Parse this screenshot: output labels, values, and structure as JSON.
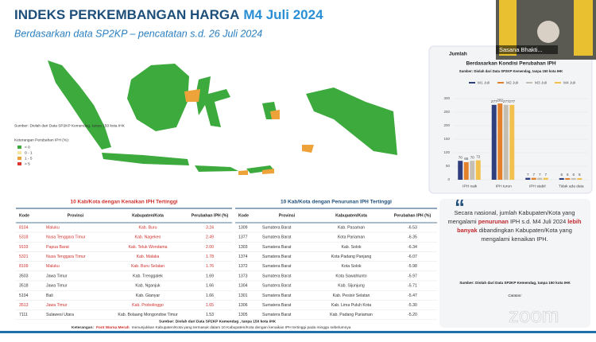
{
  "header": {
    "title": "INDEKS PERKEMBANGAN HARGA",
    "title_highlight": "M4 Juli 2024",
    "subtitle": "Berdasarkan data SP2KP – pencatatan s.d. 26 Juli 2024"
  },
  "map": {
    "source": "Sumber: Diolah dari Data SP2KP Kemendag, tanpa 150 kota IHK",
    "legend_title": "Keterangan Perubahan IPH (%):",
    "legend": [
      {
        "label": "< 0",
        "color": "#3caa3c"
      },
      {
        "label": "0 - 1",
        "color": "#f4e7a2"
      },
      {
        "label": "1 - 5",
        "color": "#eea33a"
      },
      {
        "label": "> 5",
        "color": "#d9362f"
      }
    ]
  },
  "chart_data": {
    "type": "bar",
    "title": "Jumlah",
    "subtitle": "Berdasarkan Kondisi Perubahan IPH",
    "source": "Sumber: Diolah dari Data SP2KP Kemendag, tanpa 150 kota IHK",
    "categories": [
      "IPH naik",
      "IPH turun",
      "IPH stabil",
      "Tidak ada data"
    ],
    "series": [
      {
        "name": "M1 Juli",
        "color": "#2f3f7e",
        "values": [
          70,
          277,
          7,
          6
        ]
      },
      {
        "name": "M2 Juli",
        "color": "#e2802c",
        "values": [
          65,
          282,
          7,
          6
        ]
      },
      {
        "name": "M3 Juli",
        "color": "#c4bfb2",
        "values": [
          70,
          277,
          7,
          6
        ]
      },
      {
        "name": "M4 Juli",
        "color": "#f2c04c",
        "values": [
          72,
          277,
          7,
          6
        ]
      }
    ],
    "ylim": [
      0,
      300
    ],
    "yticks": [
      0,
      50,
      100,
      150,
      200,
      250,
      300
    ]
  },
  "table_up": {
    "title": "10 Kab/Kota dengan Kenaikan IPH Tertinggi",
    "columns": [
      "Kode",
      "Provinsi",
      "Kabupaten/Kota",
      "Perubahan IPH (%)"
    ],
    "rows": [
      [
        "8104",
        "Maluku",
        "Kab. Buru",
        "3.24"
      ],
      [
        "5318",
        "Nusa Tenggara Timur",
        "Kab. Nagekeo",
        "2.49"
      ],
      [
        "9103",
        "Papua Barat",
        "Kab. Teluk Wondama",
        "2.00"
      ],
      [
        "5321",
        "Nusa Tenggara Timur",
        "Kab. Malaka",
        "1.78"
      ],
      [
        "8109",
        "Maluku",
        "Kab. Buru Selatan",
        "1.76"
      ],
      [
        "3503",
        "Jawa Timur",
        "Kab. Trenggalek",
        "1.69"
      ],
      [
        "3518",
        "Jawa Timur",
        "Kab. Nganjuk",
        "1.66"
      ],
      [
        "5104",
        "Bali",
        "Kab. Gianyar",
        "1.66"
      ],
      [
        "3513",
        "Jawa Timur",
        "Kab. Probolinggo",
        "1.65"
      ],
      [
        "7111",
        "Sulawesi Utara",
        "Kab. Bolaang Mongondow Timur",
        "1.53"
      ]
    ],
    "highlight": [
      true,
      true,
      true,
      true,
      true,
      false,
      false,
      false,
      true,
      false
    ]
  },
  "table_down": {
    "title": "10 Kab/Kota dengan Penurunan IPH Tertinggi",
    "columns": [
      "Kode",
      "Provinsi",
      "Kabupaten/Kota",
      "Perubahan IPH (%)"
    ],
    "rows": [
      [
        "1309",
        "Sumatera Barat",
        "Kab. Pasaman",
        "-6.53"
      ],
      [
        "1377",
        "Sumatera Barat",
        "Kota Pariaman",
        "-6.35"
      ],
      [
        "1303",
        "Sumatera Barat",
        "Kab. Solok",
        "-6.34"
      ],
      [
        "1374",
        "Sumatera Barat",
        "Kota Padang Panjang",
        "-6.07"
      ],
      [
        "1372",
        "Sumatera Barat",
        "Kota Solok",
        "-5.98"
      ],
      [
        "1373",
        "Sumatera Barat",
        "Kota Sawahlunto",
        "-5.97"
      ],
      [
        "1304",
        "Sumatera Barat",
        "Kab. Sijunjung",
        "-5.71"
      ],
      [
        "1301",
        "Sumatera Barat",
        "Kab. Pesisir Selatan",
        "-5.47"
      ],
      [
        "1306",
        "Sumatera Barat",
        "Kab. Lima Puluh Kota",
        "-5.30"
      ],
      [
        "1305",
        "Sumatera Barat",
        "Kab. Padang Pariaman",
        "-5.20"
      ]
    ]
  },
  "quote": {
    "segments": [
      {
        "text": "Secara nasional, jumlah Kabupaten/Kota yang mengalami ",
        "color": "#333333"
      },
      {
        "text": "penurunan",
        "color": "#c0282d"
      },
      {
        "text": " IPH s.d. M4 Juli 2024 ",
        "color": "#333333"
      },
      {
        "text": "lebih banyak",
        "color": "#c0282d"
      },
      {
        "text": " dibandingkan Kabupaten/Kota yang mengalami kenaikan IPH.",
        "color": "#333333"
      }
    ],
    "source": "Sumber: Diolah dari Data SP2KP Kemendag, tanpa 150 kota IHK",
    "note_title": "Catatan:"
  },
  "footer": {
    "source": "Sumber: Diolah dari Data SP2KP Kemendag , tanpa 150 kota IHK",
    "note_label": "Keterangan:",
    "note_highlight": "Font Warna Merah",
    "note_text": "menunjukkan Kabupaten/Kota yang termasuk dalam 10 Kabupaten/Kota dengan kenaikan IPH tertinggi pada minggu sebelumnya"
  },
  "video": {
    "name": "Sasana Bhakti..."
  },
  "watermark": "zoom"
}
